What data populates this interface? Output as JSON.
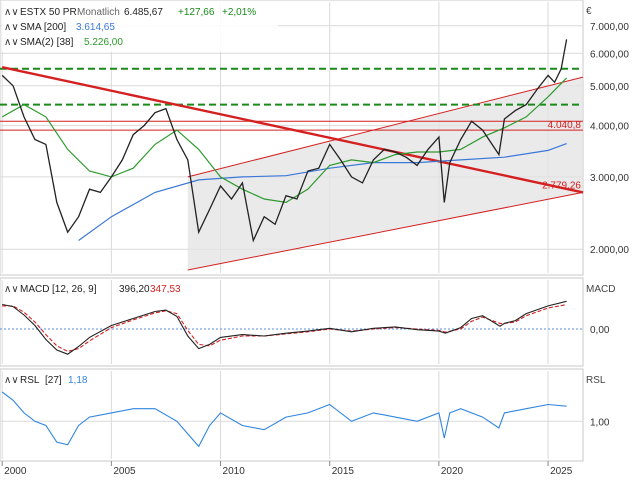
{
  "chart_data": [
    {
      "type": "line",
      "panel": "price",
      "currency_symbol": "€",
      "header": {
        "symbol": "ESTX 50 PR",
        "interval": "Monatlich",
        "last": "6.485,67",
        "change": "+127,66",
        "change_pct": "+2,01%"
      },
      "scale": "log",
      "ylim": [
        1750,
        8000
      ],
      "yticks": [
        "2.000,00",
        "3.000,00",
        "4.000,00",
        "5.000,00",
        "6.000,00",
        "7.000,00"
      ],
      "ytick_values": [
        2000,
        3000,
        4000,
        5000,
        6000,
        7000
      ],
      "series": [
        {
          "name": "ESTX 50 PR",
          "color": "#222222",
          "x": [
            2000.0,
            2000.5,
            2001.0,
            2001.5,
            2002.0,
            2002.5,
            2003.0,
            2003.5,
            2004.0,
            2004.5,
            2005.0,
            2005.5,
            2006.0,
            2006.5,
            2007.0,
            2007.5,
            2008.0,
            2008.5,
            2009.0,
            2009.5,
            2010.0,
            2010.5,
            2011.0,
            2011.5,
            2012.0,
            2012.5,
            2013.0,
            2013.5,
            2014.0,
            2014.5,
            2015.0,
            2015.5,
            2016.0,
            2016.5,
            2017.0,
            2017.5,
            2018.0,
            2018.5,
            2019.0,
            2019.5,
            2020.0,
            2020.25,
            2020.5,
            2021.0,
            2021.5,
            2022.0,
            2022.75,
            2023.0,
            2023.5,
            2024.0,
            2024.5,
            2025.0,
            2025.3,
            2025.6,
            2025.85
          ],
          "values": [
            5300,
            5000,
            4200,
            3700,
            3600,
            2600,
            2200,
            2400,
            2800,
            2750,
            3000,
            3300,
            3800,
            4000,
            4300,
            4400,
            3700,
            3300,
            2200,
            2500,
            2850,
            2650,
            2900,
            2100,
            2400,
            2300,
            2700,
            2650,
            3100,
            3150,
            3600,
            3300,
            3000,
            2900,
            3300,
            3500,
            3450,
            3350,
            3200,
            3500,
            3750,
            2600,
            3250,
            3700,
            4100,
            3900,
            3400,
            4150,
            4350,
            4500,
            4900,
            5300,
            5100,
            5500,
            6485
          ]
        },
        {
          "name": "SMA [200]",
          "value_label": "3.614,65",
          "color": "#3a78d8",
          "x": [
            2003.5,
            2005.0,
            2007.0,
            2009.0,
            2011.0,
            2013.0,
            2015.0,
            2017.0,
            2019.0,
            2021.0,
            2023.0,
            2025.0,
            2025.85
          ],
          "values": [
            2100,
            2400,
            2750,
            2950,
            3000,
            3020,
            3150,
            3250,
            3250,
            3300,
            3350,
            3480,
            3615
          ]
        },
        {
          "name": "SMA(2) [38]",
          "value_label": "5.226,00",
          "color": "#2e9a2e",
          "x": [
            2000.0,
            2001.0,
            2002.0,
            2003.0,
            2004.0,
            2005.0,
            2006.0,
            2007.0,
            2008.0,
            2009.0,
            2010.0,
            2011.0,
            2012.0,
            2013.0,
            2014.0,
            2015.0,
            2016.0,
            2017.0,
            2018.0,
            2019.0,
            2020.0,
            2021.0,
            2022.0,
            2023.0,
            2024.0,
            2025.0,
            2025.85
          ],
          "values": [
            4200,
            4500,
            4200,
            3500,
            3100,
            3000,
            3150,
            3600,
            3900,
            3500,
            3000,
            2800,
            2650,
            2600,
            2800,
            3200,
            3300,
            3250,
            3400,
            3450,
            3450,
            3500,
            3750,
            3950,
            4200,
            4700,
            5226
          ]
        }
      ],
      "annotations": [
        {
          "kind": "level",
          "value_label": "4.040,8",
          "value": 4040.8,
          "color": "#d42020"
        },
        {
          "kind": "level",
          "value_label": "2.779,26",
          "value": 2779.26,
          "color": "#d42020"
        }
      ]
    },
    {
      "type": "line",
      "panel": "macd",
      "label": "MACD",
      "header": {
        "name": "MACD",
        "params": "[12, 26, 9]",
        "macd_value": "396,20",
        "signal_value": "347,53"
      },
      "ylim": [
        -500,
        700
      ],
      "yticks": [
        "0,00"
      ],
      "ytick_values": [
        0
      ],
      "series": [
        {
          "name": "MACD",
          "color": "#222222",
          "x": [
            2000.0,
            2000.5,
            2001.0,
            2001.5,
            2002.0,
            2002.5,
            2003.0,
            2003.5,
            2004.0,
            2005.0,
            2006.0,
            2007.0,
            2007.5,
            2008.0,
            2008.5,
            2009.0,
            2009.5,
            2010.0,
            2011.0,
            2012.0,
            2013.0,
            2014.0,
            2015.0,
            2016.0,
            2017.0,
            2018.0,
            2019.0,
            2020.0,
            2020.3,
            2021.0,
            2021.5,
            2022.0,
            2022.8,
            2023.0,
            2023.5,
            2024.0,
            2025.0,
            2025.85
          ],
          "values": [
            350,
            320,
            200,
            50,
            -150,
            -300,
            -360,
            -250,
            -120,
            50,
            150,
            250,
            270,
            180,
            -100,
            -280,
            -220,
            -120,
            -80,
            -100,
            -60,
            -30,
            10,
            -40,
            10,
            30,
            -10,
            -30,
            -60,
            20,
            150,
            190,
            40,
            80,
            120,
            220,
            330,
            396
          ]
        },
        {
          "name": "Signal",
          "color": "#d42020",
          "x": [
            2000.0,
            2000.5,
            2001.0,
            2001.5,
            2002.0,
            2002.5,
            2003.0,
            2003.5,
            2004.0,
            2005.0,
            2006.0,
            2007.0,
            2007.5,
            2008.0,
            2008.5,
            2009.0,
            2009.5,
            2010.0,
            2011.0,
            2012.0,
            2013.0,
            2014.0,
            2015.0,
            2016.0,
            2017.0,
            2018.0,
            2019.0,
            2020.0,
            2020.3,
            2021.0,
            2021.5,
            2022.0,
            2022.8,
            2023.0,
            2023.5,
            2024.0,
            2025.0,
            2025.85
          ],
          "values": [
            330,
            330,
            240,
            100,
            -80,
            -240,
            -320,
            -280,
            -170,
            20,
            130,
            230,
            260,
            220,
            -20,
            -220,
            -240,
            -160,
            -100,
            -100,
            -70,
            -40,
            0,
            -30,
            0,
            20,
            0,
            -20,
            -45,
            0,
            110,
            170,
            80,
            80,
            100,
            190,
            300,
            348
          ]
        }
      ]
    },
    {
      "type": "line",
      "panel": "rsl",
      "label": "RSL",
      "header": {
        "name": "RSL",
        "params": "[27]",
        "value": "1,18"
      },
      "ylim": [
        0.55,
        1.6
      ],
      "yticks": [
        "1,00"
      ],
      "ytick_values": [
        1.0
      ],
      "series": [
        {
          "name": "RSL",
          "color": "#2f86e0",
          "x": [
            2000.0,
            2000.5,
            2001.0,
            2001.5,
            2002.0,
            2002.5,
            2003.0,
            2003.5,
            2004.0,
            2005.0,
            2006.0,
            2007.0,
            2008.0,
            2008.5,
            2009.0,
            2009.5,
            2010.0,
            2011.0,
            2012.0,
            2013.0,
            2014.0,
            2015.0,
            2016.0,
            2017.0,
            2018.0,
            2019.0,
            2020.0,
            2020.25,
            2020.5,
            2021.0,
            2022.0,
            2022.75,
            2023.0,
            2024.0,
            2025.0,
            2025.85
          ],
          "values": [
            1.35,
            1.25,
            1.1,
            1.0,
            0.95,
            0.75,
            0.72,
            0.95,
            1.05,
            1.1,
            1.15,
            1.15,
            1.0,
            0.85,
            0.7,
            0.95,
            1.1,
            0.95,
            0.9,
            1.05,
            1.1,
            1.2,
            1.0,
            1.1,
            1.05,
            1.0,
            1.1,
            0.8,
            1.1,
            1.15,
            1.05,
            0.92,
            1.1,
            1.15,
            1.2,
            1.18
          ]
        }
      ]
    },
    {
      "type": "line",
      "panel": "time-axis",
      "xlim": [
        1999.9,
        2026.6
      ],
      "xticks": [
        "2000",
        "2005",
        "2010",
        "2015",
        "2020",
        "2025"
      ],
      "xtick_values": [
        2000,
        2005,
        2010,
        2015,
        2020,
        2025
      ]
    }
  ],
  "overlays": {
    "levels_green": [
      5500,
      4500
    ],
    "resistance_line": {
      "x": [
        2000.0,
        2026.6
      ],
      "values": [
        5550,
        2750
      ]
    },
    "channel_lower": {
      "x": [
        2008.5,
        2026.6
      ],
      "values": [
        1780,
        2750
      ]
    },
    "channel_upper": {
      "x": [
        2008.5,
        2026.6
      ],
      "values": [
        3000,
        5250
      ]
    },
    "horizontal_band": [
      3900,
      4100
    ],
    "colors": {
      "green": "#1a8a1a",
      "red": "#d42020",
      "band": "#e3e3e3",
      "grid": "#dadada"
    }
  }
}
